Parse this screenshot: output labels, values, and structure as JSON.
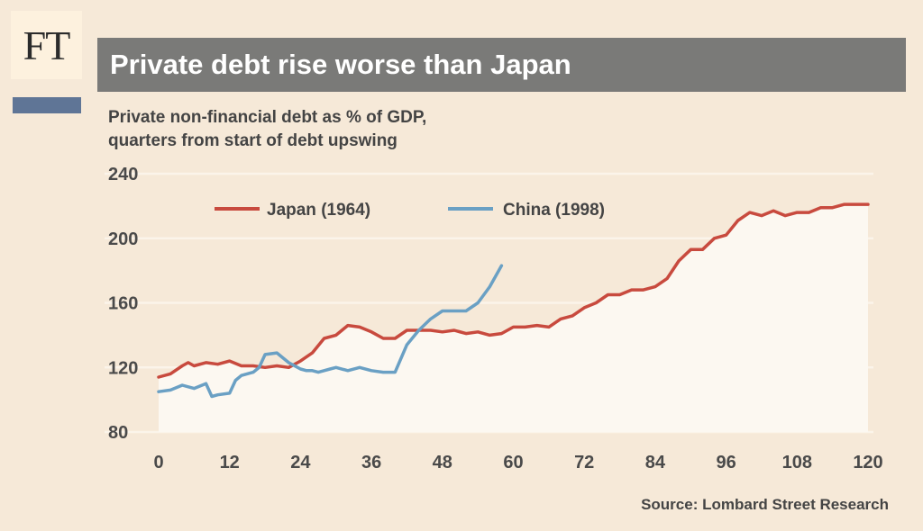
{
  "logo": "FT",
  "colors": {
    "accent": "#5f7596",
    "title_bg": "#7a7a78",
    "japan": "#c84a3e",
    "china": "#6aa0c4",
    "background": "#f6e9d8"
  },
  "chart_data": {
    "type": "line",
    "title": "Private debt rise worse than Japan",
    "subtitle_lines": [
      "Private non-financial debt as % of GDP,",
      "quarters from start of debt upswing"
    ],
    "source": "Source: Lombard Street Research",
    "xlim": [
      0,
      120
    ],
    "ylim": [
      80,
      240
    ],
    "xticks": [
      "0",
      "12",
      "24",
      "36",
      "48",
      "60",
      "72",
      "84",
      "96",
      "108",
      "120"
    ],
    "yticks": [
      "80",
      "120",
      "160",
      "200",
      "240"
    ],
    "grid": true,
    "legend_position": "top",
    "series": [
      {
        "name": "Japan (1964)",
        "color": "#c84a3e",
        "x": [
          0,
          2,
          4,
          5,
          6,
          8,
          10,
          12,
          14,
          16,
          18,
          20,
          22,
          24,
          26,
          28,
          30,
          32,
          34,
          36,
          38,
          40,
          42,
          44,
          46,
          48,
          50,
          52,
          54,
          56,
          58,
          60,
          62,
          64,
          66,
          68,
          70,
          72,
          74,
          76,
          78,
          80,
          82,
          84,
          86,
          88,
          90,
          92,
          94,
          96,
          98,
          100,
          102,
          104,
          106,
          108,
          110,
          112,
          114,
          116,
          118,
          120
        ],
        "values": [
          114,
          116,
          121,
          123,
          121,
          123,
          122,
          124,
          121,
          121,
          120,
          121,
          120,
          124,
          129,
          138,
          140,
          146,
          145,
          142,
          138,
          138,
          143,
          143,
          143,
          142,
          143,
          141,
          142,
          140,
          141,
          145,
          145,
          146,
          145,
          150,
          152,
          157,
          160,
          165,
          165,
          168,
          168,
          170,
          175,
          186,
          193,
          193,
          200,
          202,
          211,
          216,
          214,
          217,
          214,
          216,
          216,
          219,
          219,
          221,
          221,
          221
        ],
        "fill_under": true
      },
      {
        "name": "China (1998)",
        "color": "#6aa0c4",
        "x": [
          0,
          2,
          4,
          6,
          8,
          9,
          10,
          12,
          13,
          14,
          16,
          17,
          18,
          20,
          21,
          22,
          24,
          25,
          26,
          27,
          28,
          29,
          30,
          32,
          34,
          36,
          38,
          40,
          42,
          44,
          46,
          48,
          50,
          52,
          54,
          56,
          58
        ],
        "values": [
          105,
          106,
          109,
          107,
          110,
          102,
          103,
          104,
          112,
          115,
          117,
          120,
          128,
          129,
          126,
          123,
          119,
          118,
          118,
          117,
          118,
          119,
          120,
          118,
          120,
          118,
          117,
          117,
          134,
          143,
          150,
          155,
          155,
          155,
          160,
          170,
          183
        ]
      }
    ]
  }
}
